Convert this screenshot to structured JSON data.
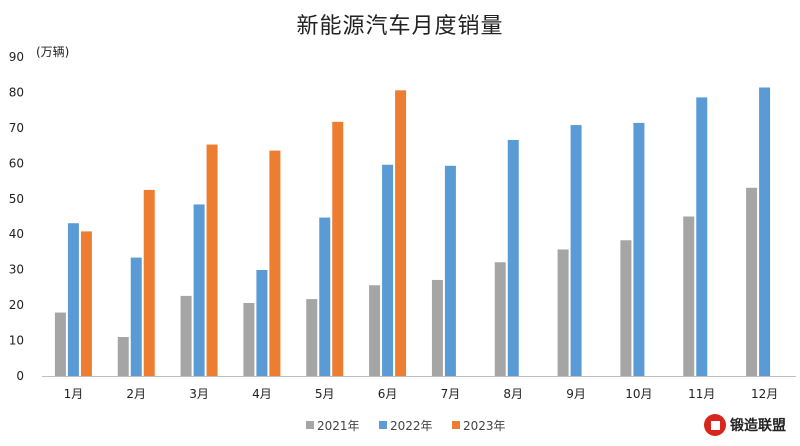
{
  "chart_data": {
    "type": "bar",
    "title": "新能源汽车月度销量",
    "ylabel": "(万辆)",
    "xlabel": "",
    "ylim": [
      0,
      90
    ],
    "yticks": [
      0,
      10,
      20,
      30,
      40,
      50,
      60,
      70,
      80,
      90
    ],
    "categories": [
      "1月",
      "2月",
      "3月",
      "4月",
      "5月",
      "6月",
      "7月",
      "8月",
      "9月",
      "10月",
      "11月",
      "12月"
    ],
    "series": [
      {
        "name": "2021年",
        "color": "#a5a5a5",
        "values": [
          17.9,
          11.0,
          22.6,
          20.6,
          21.7,
          25.6,
          27.1,
          32.1,
          35.7,
          38.3,
          45.0,
          53.1
        ]
      },
      {
        "name": "2022年",
        "color": "#5b9bd5",
        "values": [
          43.1,
          33.4,
          48.4,
          29.9,
          44.7,
          59.6,
          59.3,
          66.6,
          70.8,
          71.4,
          78.6,
          81.4
        ]
      },
      {
        "name": "2023年",
        "color": "#ed7d31",
        "values": [
          40.8,
          52.5,
          65.3,
          63.6,
          71.7,
          80.6,
          null,
          null,
          null,
          null,
          null,
          null
        ]
      }
    ],
    "grid": false,
    "legend_position": "bottom"
  },
  "logo": {
    "text": "锻造联盟"
  }
}
